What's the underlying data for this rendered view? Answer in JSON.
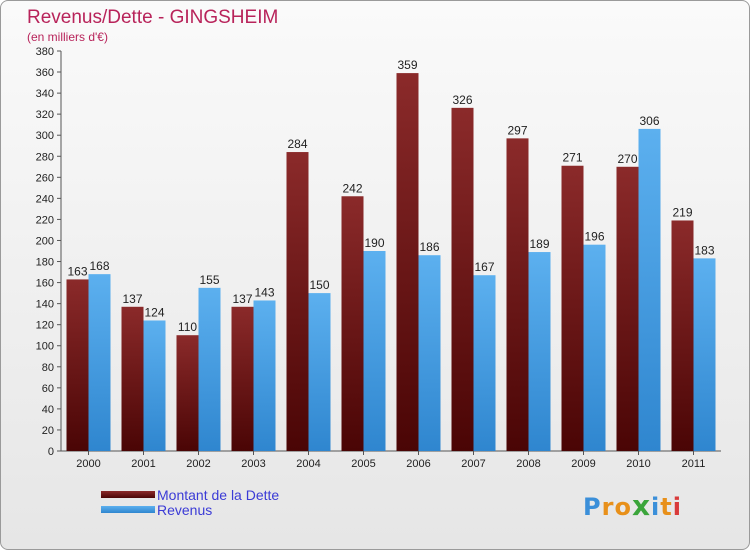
{
  "chart_data": {
    "type": "bar",
    "title": "Revenus/Dette - GINGSHEIM",
    "subtitle": "(en milliers d'€)",
    "categories": [
      "2000",
      "2001",
      "2002",
      "2003",
      "2004",
      "2005",
      "2006",
      "2007",
      "2008",
      "2009",
      "2010",
      "2011"
    ],
    "series": [
      {
        "name": "Montant de la Dette",
        "color": "#7a1f1f",
        "values": [
          163,
          137,
          110,
          137,
          284,
          242,
          359,
          326,
          297,
          271,
          270,
          219
        ]
      },
      {
        "name": "Revenus",
        "color": "#4aa3e6",
        "values": [
          168,
          124,
          155,
          143,
          150,
          190,
          186,
          167,
          189,
          196,
          306,
          183
        ]
      }
    ],
    "ylim": [
      0,
      380
    ],
    "ytick_step": 20,
    "grid": false,
    "legend_position": "bottom-left"
  },
  "logo": {
    "letters": [
      "P",
      "r",
      "o",
      "x",
      "i",
      "t",
      "i"
    ],
    "colors": [
      "#3b8fd9",
      "#e8901a",
      "#e8901a",
      "#3ba53b",
      "#3b8fd9",
      "#e8901a",
      "#d93b3b"
    ]
  }
}
